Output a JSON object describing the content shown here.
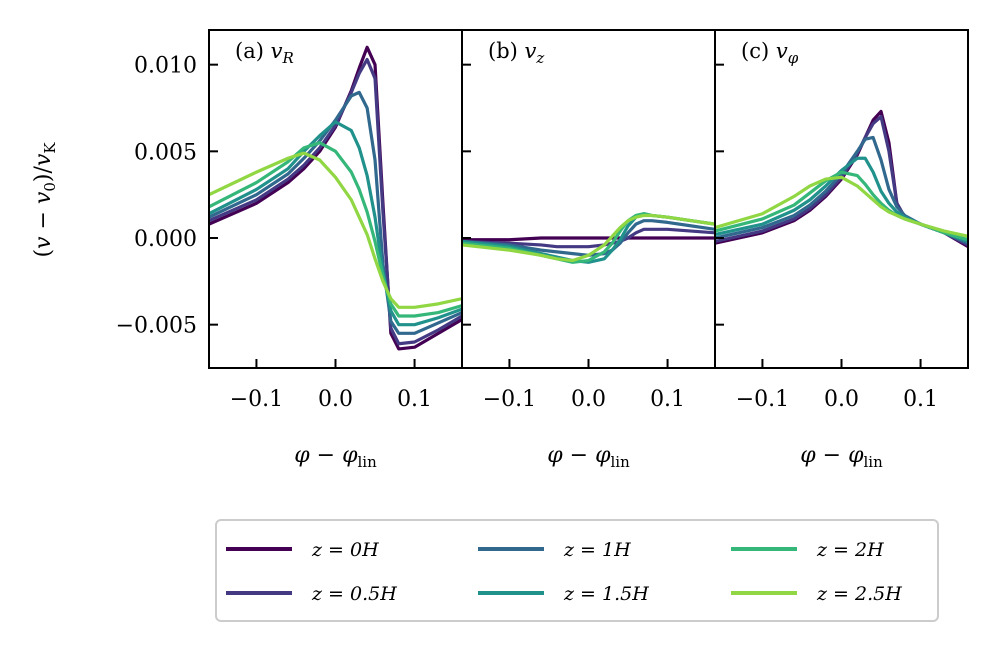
{
  "chart_data": [
    {
      "type": "line",
      "panel_label": "(a) v_R",
      "xlabel": "φ − φ_lin",
      "ylabel": "(v − v0)/vK",
      "xlim": [
        -0.16,
        0.16
      ],
      "ylim": [
        -0.0075,
        0.012
      ],
      "xticks": [
        -0.1,
        0.0,
        0.1
      ],
      "xtick_labels": [
        "−0.1",
        "0.0",
        "0.1"
      ],
      "yticks": [
        0.01,
        0.005,
        0.0,
        -0.005
      ],
      "ytick_labels": [
        "0.010",
        "0.005",
        "0.000",
        "−0.005"
      ],
      "x": [
        -0.16,
        -0.1,
        -0.06,
        -0.04,
        -0.02,
        0.0,
        0.02,
        0.03,
        0.04,
        0.05,
        0.06,
        0.07,
        0.08,
        0.1,
        0.13,
        0.16
      ],
      "series": [
        {
          "name": "z=0H",
          "values": [
            0.0008,
            0.002,
            0.0032,
            0.004,
            0.005,
            0.0064,
            0.0085,
            0.0098,
            0.011,
            0.01,
            0.002,
            -0.0055,
            -0.0064,
            -0.0063,
            -0.0055,
            -0.0047
          ]
        },
        {
          "name": "z=0.5H",
          "values": [
            0.001,
            0.0022,
            0.0034,
            0.0042,
            0.0052,
            0.0065,
            0.0084,
            0.0095,
            0.0103,
            0.0092,
            0.0015,
            -0.0052,
            -0.0061,
            -0.006,
            -0.0053,
            -0.0045
          ]
        },
        {
          "name": "z=1H",
          "values": [
            0.0012,
            0.0025,
            0.0037,
            0.0046,
            0.0056,
            0.0068,
            0.0082,
            0.0084,
            0.0075,
            0.0045,
            -0.0015,
            -0.0048,
            -0.0055,
            -0.0055,
            -0.0049,
            -0.0043
          ]
        },
        {
          "name": "z=1.5H",
          "values": [
            0.0014,
            0.0028,
            0.004,
            0.005,
            0.0059,
            0.0067,
            0.0062,
            0.0052,
            0.0036,
            0.0012,
            -0.002,
            -0.0042,
            -0.005,
            -0.005,
            -0.0046,
            -0.0041
          ]
        },
        {
          "name": "z=2H",
          "values": [
            0.0018,
            0.0032,
            0.0044,
            0.0052,
            0.0055,
            0.005,
            0.0038,
            0.0028,
            0.0015,
            -0.0002,
            -0.0022,
            -0.0038,
            -0.0045,
            -0.0045,
            -0.0043,
            -0.0039
          ]
        },
        {
          "name": "z=2.5H",
          "values": [
            0.0025,
            0.0038,
            0.0046,
            0.0049,
            0.0045,
            0.0035,
            0.0022,
            0.0012,
            0.0002,
            -0.0012,
            -0.0025,
            -0.0035,
            -0.004,
            -0.004,
            -0.0038,
            -0.0035
          ]
        }
      ]
    },
    {
      "type": "line",
      "panel_label": "(b) v_z",
      "xlabel": "φ − φ_lin",
      "xlim": [
        -0.16,
        0.16
      ],
      "ylim": [
        -0.0075,
        0.012
      ],
      "xticks": [
        -0.1,
        0.0,
        0.1
      ],
      "xtick_labels": [
        "−0.1",
        "0.0",
        "0.1"
      ],
      "x": [
        -0.16,
        -0.1,
        -0.06,
        -0.04,
        -0.02,
        0.0,
        0.02,
        0.03,
        0.04,
        0.05,
        0.06,
        0.07,
        0.08,
        0.1,
        0.13,
        0.16
      ],
      "series": [
        {
          "name": "z=0H",
          "values": [
            -0.0001,
            -0.0001,
            0.0,
            0.0,
            0.0,
            0.0,
            0.0,
            0.0,
            0.0,
            0.0,
            0.0,
            0.0,
            0.0,
            0.0,
            0.0,
            0.0
          ]
        },
        {
          "name": "z=0.5H",
          "values": [
            -0.0002,
            -0.0003,
            -0.0004,
            -0.0005,
            -0.0005,
            -0.0005,
            -0.0004,
            -0.0003,
            -0.0002,
            0.0,
            0.0003,
            0.0005,
            0.0005,
            0.0005,
            0.0004,
            0.0003
          ]
        },
        {
          "name": "z=1H",
          "values": [
            -0.0002,
            -0.0004,
            -0.0007,
            -0.0008,
            -0.0009,
            -0.001,
            -0.0009,
            -0.0007,
            -0.0003,
            0.0003,
            0.0008,
            0.001,
            0.001,
            0.0009,
            0.0007,
            0.0005
          ]
        },
        {
          "name": "z=1.5H",
          "values": [
            -0.0002,
            -0.0005,
            -0.0009,
            -0.0011,
            -0.0013,
            -0.0014,
            -0.0012,
            -0.0007,
            -0.0001,
            0.0007,
            0.0012,
            0.0014,
            0.0013,
            0.0012,
            0.001,
            0.0008
          ]
        },
        {
          "name": "z=2H",
          "values": [
            -0.0003,
            -0.0006,
            -0.001,
            -0.0012,
            -0.0014,
            -0.0013,
            -0.0008,
            -0.0003,
            0.0004,
            0.001,
            0.0013,
            0.0014,
            0.0013,
            0.0012,
            0.001,
            0.0008
          ]
        },
        {
          "name": "z=2.5H",
          "values": [
            -0.0004,
            -0.0007,
            -0.001,
            -0.0012,
            -0.0013,
            -0.001,
            -0.0004,
            0.0001,
            0.0006,
            0.001,
            0.0012,
            0.0013,
            0.0013,
            0.0012,
            0.001,
            0.0008
          ]
        }
      ]
    },
    {
      "type": "line",
      "panel_label": "(c) v_φ",
      "xlabel": "φ − φ_lin",
      "xlim": [
        -0.16,
        0.16
      ],
      "ylim": [
        -0.0075,
        0.012
      ],
      "xticks": [
        -0.1,
        0.0,
        0.1
      ],
      "xtick_labels": [
        "−0.1",
        "0.0",
        "0.1"
      ],
      "x": [
        -0.16,
        -0.1,
        -0.06,
        -0.04,
        -0.02,
        0.0,
        0.02,
        0.03,
        0.04,
        0.05,
        0.06,
        0.07,
        0.08,
        0.1,
        0.13,
        0.16
      ],
      "series": [
        {
          "name": "z=0H",
          "values": [
            -0.0003,
            0.0003,
            0.001,
            0.0016,
            0.0024,
            0.0034,
            0.0048,
            0.0058,
            0.0068,
            0.0073,
            0.0055,
            0.002,
            0.0012,
            0.0008,
            0.0003,
            -0.0005
          ]
        },
        {
          "name": "z=0.5H",
          "values": [
            -0.0002,
            0.0004,
            0.0011,
            0.0017,
            0.0025,
            0.0035,
            0.0049,
            0.0058,
            0.0066,
            0.007,
            0.005,
            0.002,
            0.0012,
            0.0008,
            0.0003,
            -0.0004
          ]
        },
        {
          "name": "z=1H",
          "values": [
            0.0,
            0.0006,
            0.0013,
            0.0019,
            0.0027,
            0.0037,
            0.005,
            0.0057,
            0.0058,
            0.0045,
            0.0028,
            0.0018,
            0.0013,
            0.0008,
            0.0003,
            -0.0003
          ]
        },
        {
          "name": "z=1.5H",
          "values": [
            0.0002,
            0.0008,
            0.0016,
            0.0022,
            0.003,
            0.0039,
            0.0046,
            0.0046,
            0.0038,
            0.0027,
            0.002,
            0.0015,
            0.0012,
            0.0008,
            0.0003,
            -0.0002
          ]
        },
        {
          "name": "z=2H",
          "values": [
            0.0004,
            0.0011,
            0.0019,
            0.0026,
            0.0033,
            0.0038,
            0.0036,
            0.0031,
            0.0025,
            0.002,
            0.0016,
            0.0013,
            0.0011,
            0.0008,
            0.0003,
            -0.0001
          ]
        },
        {
          "name": "z=2.5H",
          "values": [
            0.0006,
            0.0014,
            0.0024,
            0.003,
            0.0034,
            0.0035,
            0.003,
            0.0026,
            0.0022,
            0.0018,
            0.0015,
            0.0013,
            0.0011,
            0.0008,
            0.0004,
            0.0001
          ]
        }
      ]
    }
  ],
  "legend": {
    "placement": "bottom-center",
    "entries": [
      {
        "label": "z = 0H",
        "color": "#440154"
      },
      {
        "label": "z = 1H",
        "color": "#31688e"
      },
      {
        "label": "z = 2H",
        "color": "#35b779"
      },
      {
        "label": "z = 0.5H",
        "color": "#443983"
      },
      {
        "label": "z = 1.5H",
        "color": "#21918c"
      },
      {
        "label": "z = 2.5H",
        "color": "#90d743"
      }
    ]
  }
}
